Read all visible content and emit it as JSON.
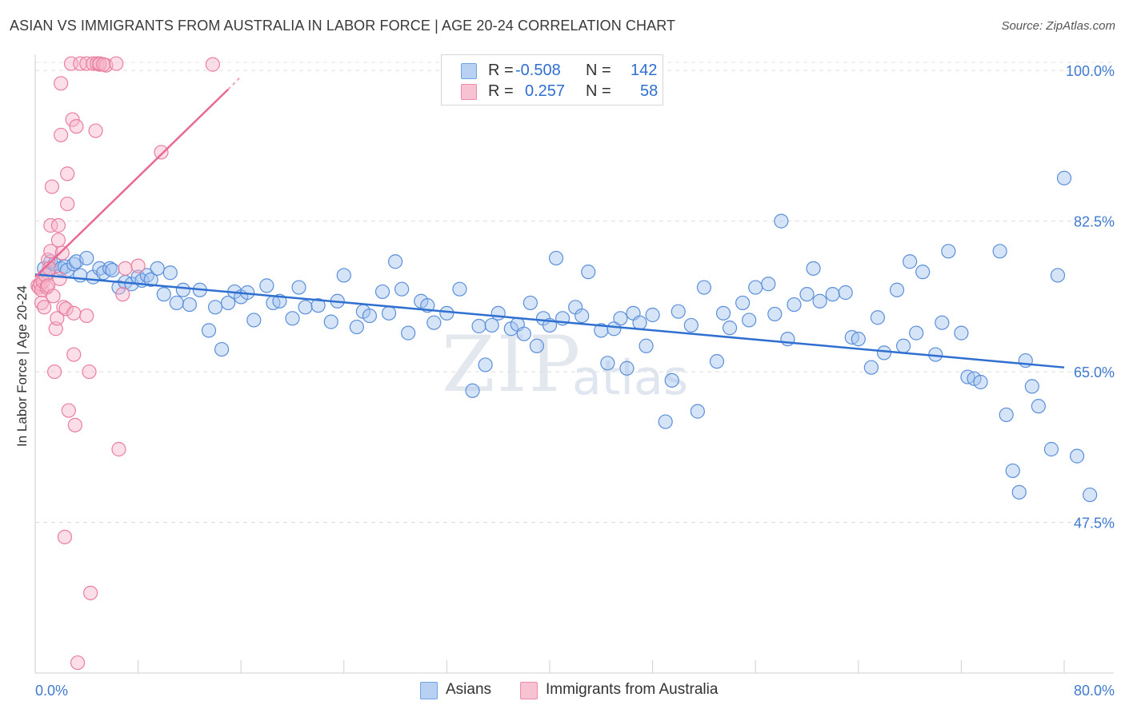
{
  "title": "ASIAN VS IMMIGRANTS FROM AUSTRALIA IN LABOR FORCE | AGE 20-24 CORRELATION CHART",
  "source": "Source: ZipAtlas.com",
  "watermark": "ZIP",
  "watermark2": "atlas",
  "legend": {
    "r_label": "R =",
    "n_label": "N =",
    "rows": [
      {
        "series": "Asians",
        "r": "-0.508",
        "n": "142",
        "color": "#6fa3e8",
        "fill": "#b8d1f3"
      },
      {
        "series": "Immigrants from Australia",
        "r": "0.257",
        "n": "58",
        "color": "#ee8aa8",
        "fill": "#f7c2d2"
      }
    ]
  },
  "chart_data": {
    "type": "scatter",
    "title": "ASIAN VS IMMIGRANTS FROM AUSTRALIA IN LABOR FORCE | AGE 20-24 CORRELATION CHART",
    "xlabel": "",
    "ylabel": "In Labor Force | Age 20-24",
    "xlim": [
      0,
      80
    ],
    "ylim": [
      30,
      101.5
    ],
    "x_tick_labels": [
      "0.0%",
      "80.0%"
    ],
    "y_tick_labels": [
      "100.0%",
      "82.5%",
      "65.0%",
      "47.5%"
    ],
    "y_ticks": [
      100,
      82.5,
      65,
      47.5
    ],
    "grid": true,
    "series": [
      {
        "name": "Asians",
        "color": "#5b8fd9",
        "trend": {
          "x": [
            0,
            80
          ],
          "y": [
            76.3,
            65.5
          ]
        },
        "points": [
          [
            0.7,
            77
          ],
          [
            1,
            76.5
          ],
          [
            1.2,
            77.8
          ],
          [
            1.5,
            77.5
          ],
          [
            2,
            77
          ],
          [
            2.3,
            77.2
          ],
          [
            2.5,
            76.8
          ],
          [
            3,
            77.5
          ],
          [
            3.2,
            77.8
          ],
          [
            3.5,
            76.2
          ],
          [
            4,
            78.2
          ],
          [
            4.5,
            76
          ],
          [
            5,
            77
          ],
          [
            5.3,
            76.5
          ],
          [
            5.8,
            77
          ],
          [
            6,
            76.8
          ],
          [
            6.5,
            74.8
          ],
          [
            7,
            75.4
          ],
          [
            7.5,
            75.2
          ],
          [
            8,
            76
          ],
          [
            8.3,
            75.6
          ],
          [
            8.7,
            76.2
          ],
          [
            9,
            75.7
          ],
          [
            9.5,
            77
          ],
          [
            10,
            74
          ],
          [
            10.5,
            76.5
          ],
          [
            11,
            73
          ],
          [
            11.5,
            74.5
          ],
          [
            12,
            72.8
          ],
          [
            12.8,
            74.5
          ],
          [
            13.5,
            69.8
          ],
          [
            14,
            72.5
          ],
          [
            14.5,
            67.6
          ],
          [
            15,
            73
          ],
          [
            15.5,
            74.3
          ],
          [
            16,
            73.7
          ],
          [
            16.5,
            74.2
          ],
          [
            17,
            71
          ],
          [
            18,
            75
          ],
          [
            18.5,
            73
          ],
          [
            19,
            73.2
          ],
          [
            20,
            71.2
          ],
          [
            20.5,
            74.8
          ],
          [
            21,
            72.5
          ],
          [
            22,
            72.7
          ],
          [
            23,
            70.8
          ],
          [
            23.5,
            73.2
          ],
          [
            24,
            76.2
          ],
          [
            25,
            70.2
          ],
          [
            25.5,
            72
          ],
          [
            26,
            71.5
          ],
          [
            27,
            74.3
          ],
          [
            27.5,
            71.8
          ],
          [
            28,
            77.8
          ],
          [
            28.5,
            74.6
          ],
          [
            29,
            69.5
          ],
          [
            30,
            73.2
          ],
          [
            30.5,
            72.7
          ],
          [
            31,
            70.7
          ],
          [
            32,
            71.8
          ],
          [
            33,
            74.6
          ],
          [
            34,
            62.8
          ],
          [
            34.5,
            70.3
          ],
          [
            35,
            65.8
          ],
          [
            35.5,
            70.4
          ],
          [
            36,
            71.8
          ],
          [
            37,
            70
          ],
          [
            37.5,
            70.5
          ],
          [
            38,
            69.4
          ],
          [
            38.5,
            73
          ],
          [
            39,
            68
          ],
          [
            39.5,
            71.2
          ],
          [
            40,
            70.4
          ],
          [
            40.5,
            78.2
          ],
          [
            41,
            71.2
          ],
          [
            42,
            72.5
          ],
          [
            42.5,
            71.5
          ],
          [
            43,
            76.6
          ],
          [
            44,
            69.8
          ],
          [
            44.5,
            66
          ],
          [
            45,
            70
          ],
          [
            45.5,
            71.2
          ],
          [
            46,
            65.4
          ],
          [
            46.5,
            71.8
          ],
          [
            47,
            70.7
          ],
          [
            47.5,
            68
          ],
          [
            48,
            71.6
          ],
          [
            49,
            59.2
          ],
          [
            49.5,
            64
          ],
          [
            50,
            72
          ],
          [
            51,
            70.4
          ],
          [
            51.5,
            60.4
          ],
          [
            52,
            74.8
          ],
          [
            53,
            66.2
          ],
          [
            53.5,
            71.8
          ],
          [
            54,
            70.1
          ],
          [
            55,
            73
          ],
          [
            55.5,
            71
          ],
          [
            56,
            74.8
          ],
          [
            57,
            75.2
          ],
          [
            57.5,
            71.7
          ],
          [
            58,
            82.5
          ],
          [
            58.5,
            68.8
          ],
          [
            59,
            72.8
          ],
          [
            60,
            74
          ],
          [
            60.5,
            77
          ],
          [
            61,
            73.2
          ],
          [
            62,
            74
          ],
          [
            63,
            74.2
          ],
          [
            63.5,
            69
          ],
          [
            64,
            68.8
          ],
          [
            65,
            65.5
          ],
          [
            65.5,
            71.3
          ],
          [
            66,
            67.2
          ],
          [
            67,
            74.5
          ],
          [
            67.5,
            68
          ],
          [
            68,
            77.8
          ],
          [
            68.5,
            69.5
          ],
          [
            69,
            76.6
          ],
          [
            70,
            67
          ],
          [
            70.5,
            70.7
          ],
          [
            71,
            79
          ],
          [
            72,
            69.5
          ],
          [
            72.5,
            64.4
          ],
          [
            73,
            64.2
          ],
          [
            73.5,
            63.8
          ],
          [
            75,
            79
          ],
          [
            75.5,
            60
          ],
          [
            76,
            53.5
          ],
          [
            76.5,
            51
          ],
          [
            77,
            66.3
          ],
          [
            77.5,
            63.3
          ],
          [
            78,
            61
          ],
          [
            79,
            56
          ],
          [
            79.5,
            76.2
          ],
          [
            80,
            87.5
          ],
          [
            81,
            55.2
          ],
          [
            82,
            50.7
          ]
        ]
      },
      {
        "name": "Immigrants from Australia",
        "color": "#ea7ea0",
        "trend": {
          "x": [
            0,
            15
          ],
          "y": [
            76,
            97.8
          ]
        },
        "trend_dashed": {
          "x": [
            15,
            16
          ],
          "y": [
            97.8,
            99.3
          ]
        },
        "points": [
          [
            0.2,
            75
          ],
          [
            0.3,
            74.8
          ],
          [
            0.4,
            75.2
          ],
          [
            0.5,
            74.5
          ],
          [
            0.5,
            73
          ],
          [
            0.6,
            75.5
          ],
          [
            0.7,
            72.5
          ],
          [
            0.8,
            76.2
          ],
          [
            0.9,
            74.8
          ],
          [
            1,
            78
          ],
          [
            1,
            75
          ],
          [
            1.1,
            77
          ],
          [
            1.2,
            82
          ],
          [
            1.2,
            79
          ],
          [
            1.3,
            86.5
          ],
          [
            1.4,
            73.8
          ],
          [
            1.5,
            65
          ],
          [
            1.6,
            70
          ],
          [
            1.7,
            71.2
          ],
          [
            1.8,
            82
          ],
          [
            1.8,
            80.3
          ],
          [
            1.9,
            75.8
          ],
          [
            2,
            92.5
          ],
          [
            2,
            98.5
          ],
          [
            2.1,
            78.8
          ],
          [
            2.2,
            72.5
          ],
          [
            2.3,
            45.8
          ],
          [
            2.4,
            72.3
          ],
          [
            2.5,
            84.5
          ],
          [
            2.5,
            88
          ],
          [
            2.6,
            60.5
          ],
          [
            2.8,
            100.8
          ],
          [
            2.9,
            94.3
          ],
          [
            3,
            71.8
          ],
          [
            3,
            67
          ],
          [
            3.1,
            58.8
          ],
          [
            3.2,
            93.5
          ],
          [
            3.3,
            31.2
          ],
          [
            3.5,
            100.8
          ],
          [
            4,
            100.8
          ],
          [
            4,
            71.5
          ],
          [
            4.2,
            65
          ],
          [
            4.5,
            100.8
          ],
          [
            4.8,
            100.8
          ],
          [
            5,
            100.7
          ],
          [
            5,
            100.8
          ],
          [
            5.5,
            100.6
          ],
          [
            4.3,
            39.3
          ],
          [
            4.7,
            93
          ],
          [
            5.3,
            100.7
          ],
          [
            6.3,
            100.8
          ],
          [
            6.5,
            56
          ],
          [
            6.8,
            74
          ],
          [
            7,
            77
          ],
          [
            8,
            77.3
          ],
          [
            9.8,
            90.5
          ],
          [
            13.8,
            100.7
          ]
        ]
      }
    ]
  }
}
